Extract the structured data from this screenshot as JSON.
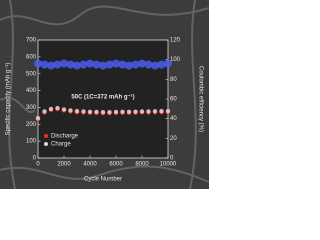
{
  "chart_data": {
    "type": "scatter",
    "xlabel": "Cycle Number",
    "ylabel": "Specific capacity (mAh g⁻¹)",
    "y2label": "Coulombic efficiency (%)",
    "annotation": "50C (1C=372 mAh g⁻¹)",
    "x": [
      0,
      500,
      1000,
      1500,
      2000,
      2500,
      3000,
      3500,
      4000,
      4500,
      5000,
      5500,
      6000,
      6500,
      7000,
      7500,
      8000,
      8500,
      9000,
      9500,
      10000
    ],
    "series": [
      {
        "name": "Discharge",
        "color": "#e8322c",
        "values": [
          230,
          270,
          285,
          290,
          282,
          276,
          272,
          270,
          268,
          267,
          266,
          266,
          267,
          268,
          268,
          269,
          270,
          270,
          271,
          272,
          272
        ]
      },
      {
        "name": "Charge",
        "color": "#f2d0d0",
        "values": [
          236,
          276,
          291,
          296,
          288,
          282,
          278,
          276,
          274,
          273,
          272,
          272,
          273,
          274,
          274,
          275,
          276,
          276,
          277,
          278,
          278
        ]
      },
      {
        "color": "#4a5cf0",
        "axis": "y2",
        "values": [
          96,
          95,
          94,
          95,
          96,
          95,
          94,
          95,
          96,
          95,
          94,
          95,
          96,
          95,
          94,
          95,
          96,
          95,
          94,
          95,
          96
        ]
      }
    ],
    "xlim": [
      0,
      10000
    ],
    "xticks": [
      0,
      2000,
      4000,
      6000,
      8000,
      10000
    ],
    "ylim": [
      0,
      700
    ],
    "yticks": [
      0,
      100,
      200,
      300,
      400,
      500,
      600,
      700
    ],
    "y2lim": [
      0,
      120
    ],
    "y2ticks": [
      0,
      20,
      40,
      60,
      80,
      100,
      120
    ],
    "legend": "lower left"
  }
}
